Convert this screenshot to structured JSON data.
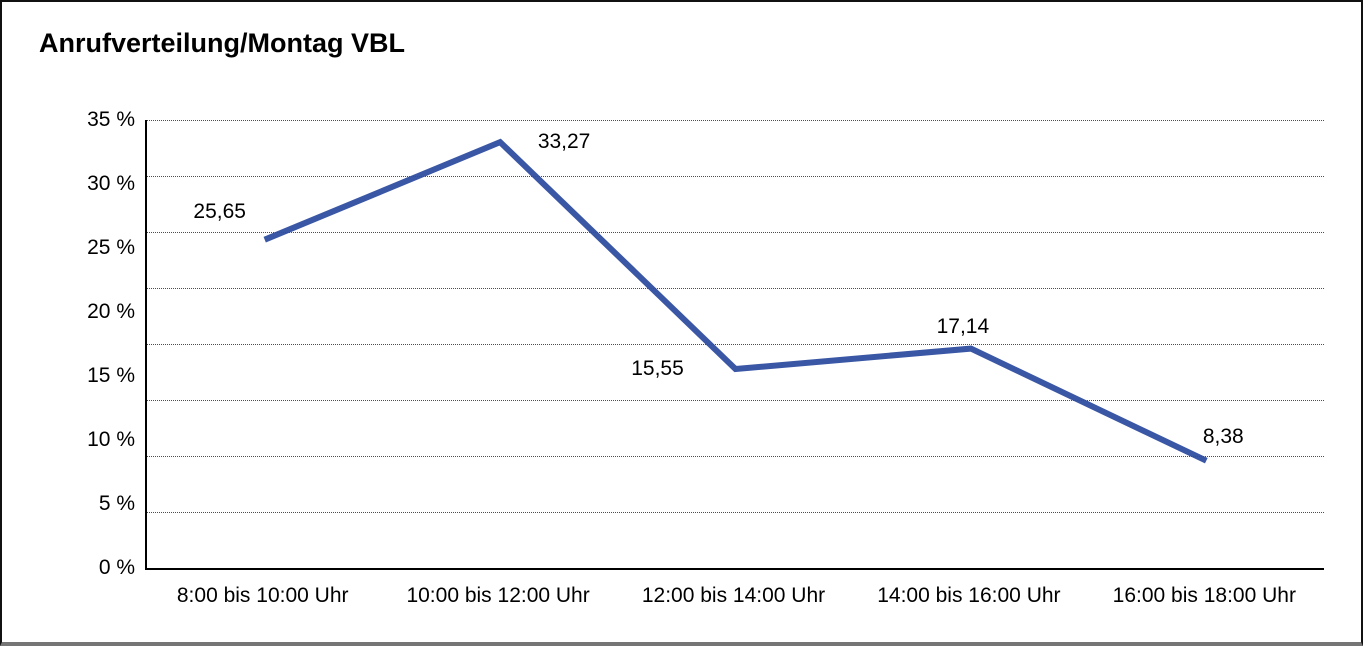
{
  "title": "Anrufverteilung/Montag VBL",
  "chart_data": {
    "type": "line",
    "title": "Anrufverteilung/Montag VBL",
    "categories": [
      "8:00 bis 10:00 Uhr",
      "10:00 bis 12:00 Uhr",
      "12:00 bis 14:00 Uhr",
      "14:00 bis 16:00 Uhr",
      "16:00 bis 18:00 Uhr"
    ],
    "values": [
      25.65,
      33.27,
      15.55,
      17.14,
      8.38
    ],
    "point_labels": [
      "25,65",
      "33,27",
      "15,55",
      "17,14",
      "8,38"
    ],
    "y_tick_labels": [
      "35 %",
      "30 %",
      "25 %",
      "20 %",
      "15 %",
      "10 %",
      "5 %",
      "0 %"
    ],
    "ylim": [
      0,
      35
    ],
    "y_tick_step_percent": 5,
    "grid": "horizontal-dotted",
    "grid_divisions": 8,
    "legend": "none",
    "xlabel": "",
    "ylabel": "",
    "line_color": "#3A57A5"
  }
}
